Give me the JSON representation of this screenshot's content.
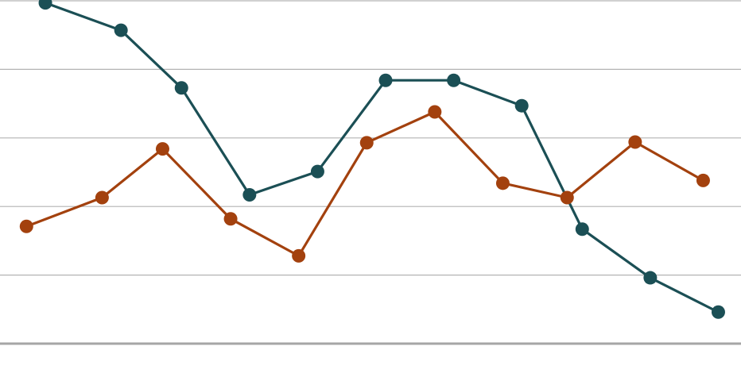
{
  "chart_data": {
    "type": "line",
    "title": "",
    "xlabel": "",
    "ylabel": "",
    "ylim": [
      0,
      5
    ],
    "grid": true,
    "legend": "none",
    "gridlines": [
      1,
      2,
      3,
      4,
      5
    ],
    "series": [
      {
        "color": "#1b4f55",
        "points": [
          {
            "x": 0.6,
            "y": 4.97
          },
          {
            "x": 1.6,
            "y": 4.57
          },
          {
            "x": 2.4,
            "y": 3.73
          },
          {
            "x": 3.3,
            "y": 2.17
          },
          {
            "x": 4.2,
            "y": 2.51
          },
          {
            "x": 5.1,
            "y": 3.84
          },
          {
            "x": 6.0,
            "y": 3.84
          },
          {
            "x": 6.9,
            "y": 3.47
          },
          {
            "x": 7.7,
            "y": 1.67
          },
          {
            "x": 8.6,
            "y": 0.96
          },
          {
            "x": 9.5,
            "y": 0.46
          }
        ]
      },
      {
        "color": "#a3410e",
        "points": [
          {
            "x": 0.35,
            "y": 1.71
          },
          {
            "x": 1.35,
            "y": 2.13
          },
          {
            "x": 2.15,
            "y": 2.84
          },
          {
            "x": 3.05,
            "y": 1.82
          },
          {
            "x": 3.95,
            "y": 1.28
          },
          {
            "x": 4.85,
            "y": 2.93
          },
          {
            "x": 5.75,
            "y": 3.38
          },
          {
            "x": 6.65,
            "y": 2.34
          },
          {
            "x": 7.5,
            "y": 2.13
          },
          {
            "x": 8.4,
            "y": 2.94
          },
          {
            "x": 9.3,
            "y": 2.38
          }
        ]
      }
    ]
  }
}
